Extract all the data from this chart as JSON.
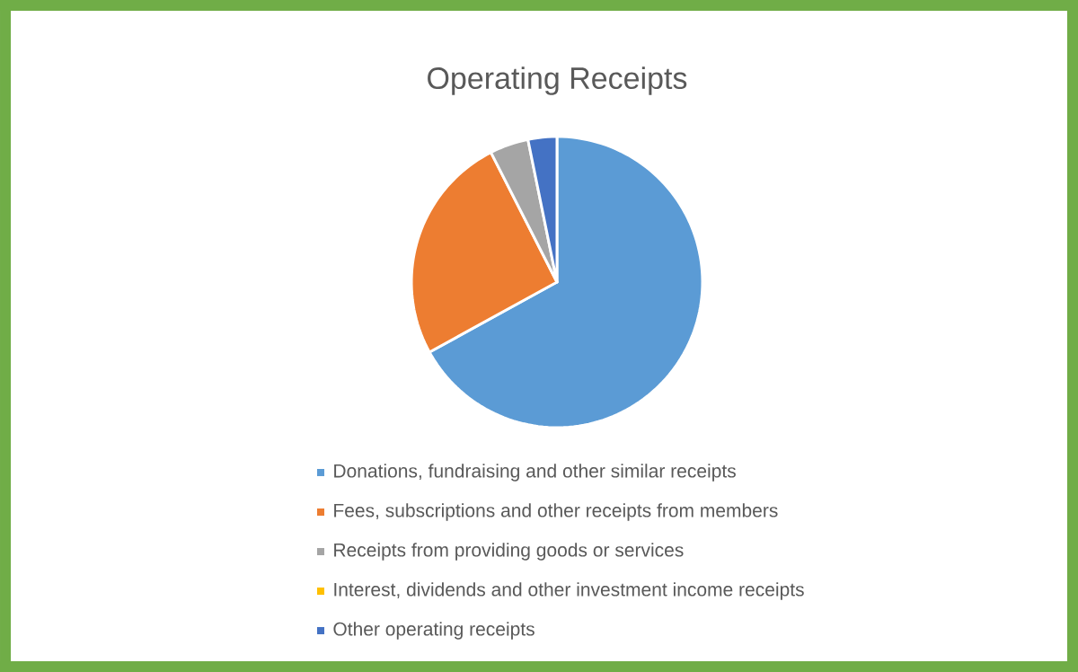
{
  "chart_data": {
    "type": "pie",
    "title": "Operating Receipts",
    "categories": [
      "Donations, fundraising and other similar receipts",
      "Fees, subscriptions and other receipts from members",
      "Receipts from providing goods or services",
      "Interest, dividends and other investment income receipts",
      "Other operating receipts"
    ],
    "values": [
      67,
      25.5,
      4.3,
      null,
      3.2
    ],
    "colors": [
      "#5b9bd5",
      "#ed7d31",
      "#a5a5a5",
      "#ffc000",
      "#4472c4"
    ],
    "legend": "bottom"
  }
}
